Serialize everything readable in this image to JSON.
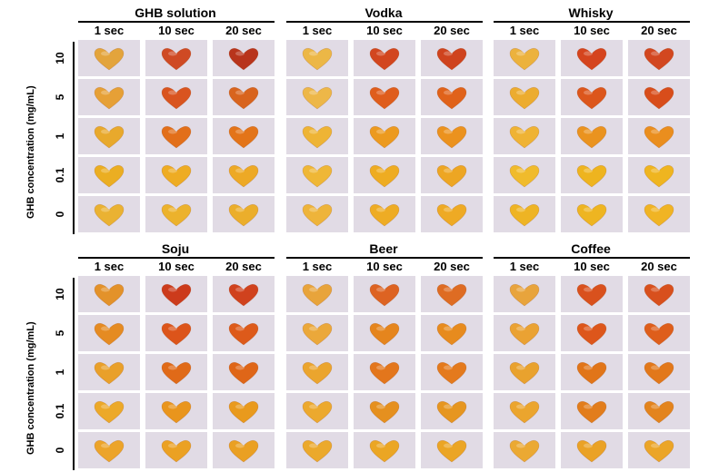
{
  "y_axis_title": "GHB concentration (mg/mL)",
  "time_labels": [
    "1 sec",
    "10 sec",
    "20 sec"
  ],
  "concentration_labels": [
    "10",
    "5",
    "1",
    "0.1",
    "0"
  ],
  "panels": [
    {
      "title": "GHB solution",
      "colors": [
        [
          "#e3a43c",
          "#cf4a24",
          "#b8341c"
        ],
        [
          "#e6a036",
          "#d9541f",
          "#d8641e"
        ],
        [
          "#e8a92c",
          "#e26f1a",
          "#e37419"
        ],
        [
          "#ebae22",
          "#eeac23",
          "#eda925"
        ],
        [
          "#eab232",
          "#ecb22c",
          "#ebae2b"
        ]
      ]
    },
    {
      "title": "Vodka",
      "colors": [
        [
          "#ecb746",
          "#d2461f",
          "#cf431e"
        ],
        [
          "#edb748",
          "#df5d1c",
          "#e0621a"
        ],
        [
          "#eeb435",
          "#ec9a1f",
          "#eb921e"
        ],
        [
          "#efb736",
          "#eeac22",
          "#eda623"
        ],
        [
          "#eeb43a",
          "#eeac24",
          "#eeaa24"
        ]
      ]
    },
    {
      "title": "Whisky",
      "colors": [
        [
          "#ecb23d",
          "#d5441e",
          "#d24720"
        ],
        [
          "#ecac2f",
          "#dc561c",
          "#d84d1b"
        ],
        [
          "#efb334",
          "#ea931f",
          "#ea8e1e"
        ],
        [
          "#f0bb2c",
          "#eeb41f",
          "#efb520"
        ],
        [
          "#eeb424",
          "#eeb521",
          "#f0b424"
        ]
      ]
    },
    {
      "title": "Soju",
      "colors": [
        [
          "#e3922a",
          "#cc3b1c",
          "#d0421e"
        ],
        [
          "#e58b22",
          "#dc541a",
          "#dd5a1a"
        ],
        [
          "#e9a02a",
          "#e06a18",
          "#df6618"
        ],
        [
          "#eca929",
          "#e9951d",
          "#e99a1d"
        ],
        [
          "#eca42a",
          "#eba123",
          "#eaa023"
        ]
      ]
    },
    {
      "title": "Beer",
      "colors": [
        [
          "#e8a43b",
          "#dd6322",
          "#de6c23"
        ],
        [
          "#eba83a",
          "#e5851d",
          "#e78b1e"
        ],
        [
          "#eba52e",
          "#e3761c",
          "#e47a1d"
        ],
        [
          "#eca92e",
          "#e5901f",
          "#e69620"
        ],
        [
          "#eba92c",
          "#eba624",
          "#eba525"
        ]
      ]
    },
    {
      "title": "Coffee",
      "colors": [
        [
          "#e8a43c",
          "#d9511d",
          "#d8501d"
        ],
        [
          "#eaa233",
          "#dd561b",
          "#de5e1b"
        ],
        [
          "#e9a22e",
          "#e17519",
          "#e2781a"
        ],
        [
          "#eba52e",
          "#e27d1c",
          "#e3841d"
        ],
        [
          "#eba933",
          "#eaa226",
          "#eba528"
        ]
      ]
    }
  ]
}
